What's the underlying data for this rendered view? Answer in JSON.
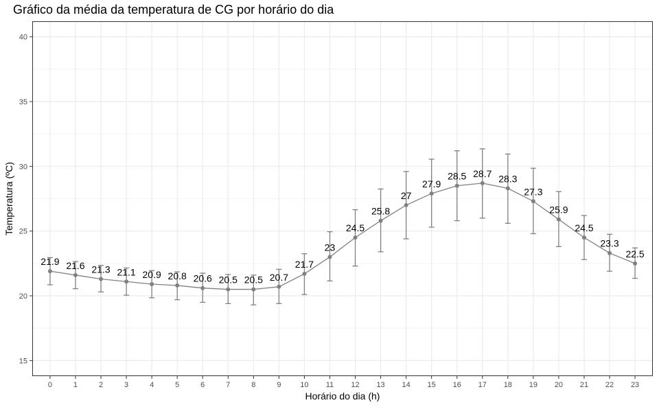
{
  "chart_data": {
    "type": "line",
    "title": "Gráfico da média da temperatura de CG por horário do dia",
    "xlabel": "Horário do dia (h)",
    "ylabel": "Temperatura (ºC)",
    "x": [
      0,
      1,
      2,
      3,
      4,
      5,
      6,
      7,
      8,
      9,
      10,
      11,
      12,
      13,
      14,
      15,
      16,
      17,
      18,
      19,
      20,
      21,
      22,
      23
    ],
    "xlim": [
      -0.7,
      23.7
    ],
    "ylim": [
      13.8,
      41.2
    ],
    "yticks": [
      15,
      20,
      25,
      30,
      35,
      40
    ],
    "grid": true,
    "legend": "none",
    "series": [
      {
        "values": [
          21.9,
          21.6,
          21.3,
          21.1,
          20.9,
          20.8,
          20.6,
          20.5,
          20.5,
          20.7,
          21.7,
          23,
          24.5,
          25.8,
          27,
          27.9,
          28.5,
          28.7,
          28.3,
          27.3,
          25.9,
          24.5,
          23.3,
          22.5
        ],
        "labels": [
          "21.9",
          "21.6",
          "21.3",
          "21.1",
          "20.9",
          "20.8",
          "20.6",
          "20.5",
          "20.5",
          "20.7",
          "21.7",
          "23",
          "24.5",
          "25.8",
          "27",
          "27.9",
          "28.5",
          "28.7",
          "28.3",
          "27.3",
          "25.9",
          "24.5",
          "23.3",
          "22.5"
        ],
        "error_low": [
          20.85,
          20.55,
          20.3,
          20.05,
          19.85,
          19.7,
          19.5,
          19.4,
          19.3,
          19.4,
          20.1,
          21.15,
          22.3,
          23.4,
          24.4,
          25.3,
          25.8,
          26.0,
          25.6,
          24.8,
          23.8,
          22.8,
          21.9,
          21.35
        ],
        "error_high": [
          22.95,
          22.65,
          22.35,
          22.15,
          21.95,
          21.85,
          21.75,
          21.65,
          21.6,
          22.05,
          23.25,
          24.95,
          26.65,
          28.25,
          29.6,
          30.55,
          31.2,
          31.35,
          30.95,
          29.85,
          28.05,
          26.2,
          24.75,
          23.7
        ],
        "color": "#808080"
      }
    ]
  }
}
